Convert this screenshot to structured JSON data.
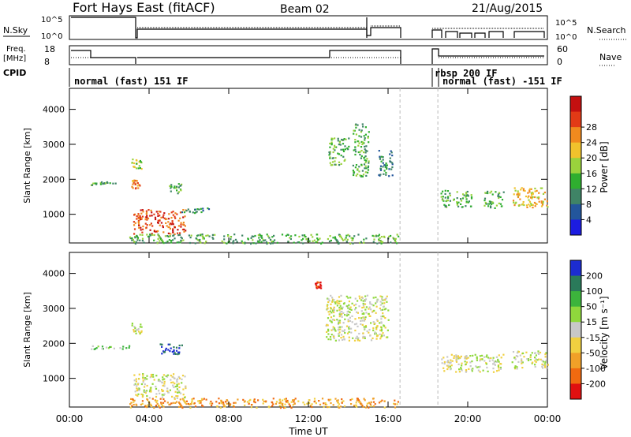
{
  "header": {
    "title": "Fort Hays East (fitACF)",
    "beam": "Beam 02",
    "date": "21/Aug/2015"
  },
  "top_panels": {
    "nsky_label": "N.Sky",
    "nsearch_label": "N.Search",
    "noise_ticks": [
      "10^5",
      "10^0"
    ],
    "freq_label_1": "Freq.",
    "freq_label_2": "[MHz]",
    "freq_ticks": [
      "18",
      "8"
    ],
    "nave_ticks": [
      "60",
      "0"
    ],
    "nave_label": "Nave",
    "cpid_label": "CPID",
    "cpid_names": [
      "normal (fast) 151 IF",
      "rbsp 200 IF",
      "normal (fast)  -151 IF"
    ]
  },
  "chart_data": [
    {
      "type": "heatmap",
      "name": "power",
      "ylabel": "Slant Range [km]",
      "xlabel": "",
      "colorbar_label": "Power [dB]",
      "colorbar_ticks": [
        "4",
        "8",
        "12",
        "16",
        "20",
        "24",
        "28"
      ],
      "colorbar_colors": [
        "#1c1ce0",
        "#23569c",
        "#3f8466",
        "#2fae2f",
        "#9ad23c",
        "#f0c22c",
        "#f08a1e",
        "#e23a16",
        "#c41010"
      ],
      "xlim": [
        "00:00",
        "24:00"
      ],
      "ylim": [
        180,
        4600
      ],
      "yticks": [
        1000,
        2000,
        3000,
        4000
      ],
      "regions": [
        {
          "t0": 1.0,
          "t1": 2.3,
          "r0": 1850,
          "r1": 1950,
          "level": 3
        },
        {
          "t0": 3.1,
          "t1": 3.6,
          "r0": 2300,
          "r1": 2600,
          "level": 4
        },
        {
          "t0": 3.1,
          "t1": 3.5,
          "r0": 1750,
          "r1": 2000,
          "level": 6
        },
        {
          "t0": 3.2,
          "t1": 5.8,
          "r0": 450,
          "r1": 1150,
          "level": 7
        },
        {
          "t0": 5.0,
          "t1": 5.6,
          "r0": 1600,
          "r1": 1900,
          "level": 3
        },
        {
          "t0": 5.6,
          "t1": 7.0,
          "r0": 1050,
          "r1": 1200,
          "level": 2
        },
        {
          "t0": 3.0,
          "t1": 16.5,
          "r0": 180,
          "r1": 450,
          "level": 3
        },
        {
          "t0": 13.0,
          "t1": 14.0,
          "r0": 2400,
          "r1": 3200,
          "level": 3
        },
        {
          "t0": 14.2,
          "t1": 15.0,
          "r0": 2100,
          "r1": 3600,
          "level": 3
        },
        {
          "t0": 15.5,
          "t1": 16.2,
          "r0": 2100,
          "r1": 2900,
          "level": 2
        },
        {
          "t0": 18.6,
          "t1": 20.2,
          "r0": 1200,
          "r1": 1700,
          "level": 3
        },
        {
          "t0": 20.8,
          "t1": 21.8,
          "r0": 1200,
          "r1": 1700,
          "level": 3
        },
        {
          "t0": 22.2,
          "t1": 24.0,
          "r0": 1200,
          "r1": 1800,
          "level": 5
        }
      ]
    },
    {
      "type": "heatmap",
      "name": "velocity",
      "ylabel": "Slant Range [km]",
      "xlabel": "Time UT",
      "colorbar_label": "Velocity [m s⁻¹]",
      "colorbar_ticks": [
        "200",
        "100",
        "50",
        "15",
        "-15",
        "-50",
        "-100",
        "-200"
      ],
      "colorbar_colors": [
        "#1c2cd0",
        "#2a7a5a",
        "#3cb43c",
        "#8fd83c",
        "#c8c8c8",
        "#f0d040",
        "#f0a028",
        "#f06a10",
        "#e01010"
      ],
      "xlim": [
        "00:00",
        "24:00"
      ],
      "ylim": [
        180,
        4600
      ],
      "yticks": [
        1000,
        2000,
        3000,
        4000
      ],
      "xticks": [
        "00:00",
        "04:00",
        "08:00",
        "12:00",
        "16:00",
        "20:00",
        "00:00"
      ],
      "regions": [
        {
          "t0": 1.0,
          "t1": 3.0,
          "r0": 1850,
          "r1": 1950,
          "level": 3
        },
        {
          "t0": 3.1,
          "t1": 3.6,
          "r0": 2300,
          "r1": 2600,
          "level": 4
        },
        {
          "t0": 4.5,
          "t1": 5.8,
          "r0": 1700,
          "r1": 2000,
          "level": 0
        },
        {
          "t0": 3.2,
          "t1": 5.8,
          "r0": 450,
          "r1": 1150,
          "level": 4
        },
        {
          "t0": 3.0,
          "t1": 16.5,
          "r0": 180,
          "r1": 450,
          "level": 6
        },
        {
          "t0": 12.8,
          "t1": 16.0,
          "r0": 2100,
          "r1": 3400,
          "level": 4
        },
        {
          "t0": 12.3,
          "t1": 12.6,
          "r0": 3600,
          "r1": 3800,
          "level": 8
        },
        {
          "t0": 18.6,
          "t1": 21.8,
          "r0": 1200,
          "r1": 1700,
          "level": 4
        },
        {
          "t0": 22.2,
          "t1": 24.0,
          "r0": 1300,
          "r1": 1800,
          "level": 4
        }
      ]
    }
  ]
}
